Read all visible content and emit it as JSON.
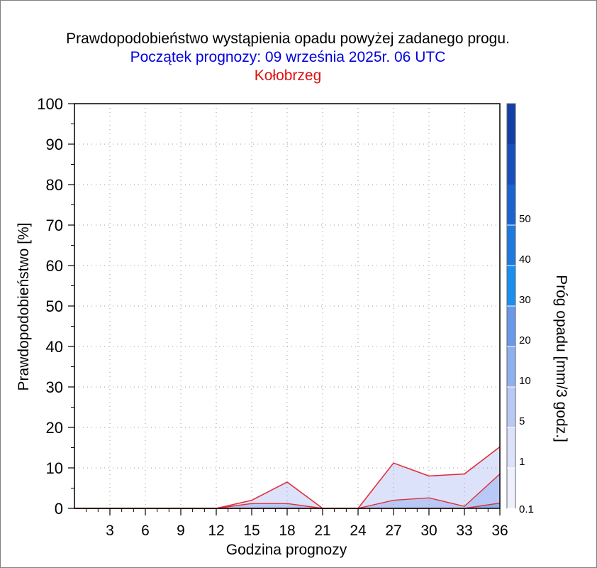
{
  "chart_data": {
    "type": "area",
    "title": "Prawdopodobieństwo wystąpienia opadu powyżej zadanego progu.",
    "subtitle": "Początek prognozy: 09 września 2025r. 06 UTC",
    "location": "Kołobrzeg",
    "xlabel": "Godzina prognozy",
    "ylabel": "Prawdopodobieństwo [%]",
    "colorbar_label": "Próg opadu [mm/3 godz.]",
    "xlim": [
      0,
      36
    ],
    "ylim": [
      0,
      100
    ],
    "x_ticks": [
      "3",
      "6",
      "9",
      "12",
      "15",
      "18",
      "21",
      "24",
      "27",
      "30",
      "33",
      "36"
    ],
    "y_ticks": [
      "0",
      "10",
      "20",
      "30",
      "40",
      "50",
      "60",
      "70",
      "80",
      "90",
      "100"
    ],
    "grid": true,
    "x": [
      0,
      3,
      6,
      9,
      12,
      15,
      18,
      21,
      24,
      27,
      30,
      33,
      36
    ],
    "series": [
      {
        "name": "0.1",
        "color": "#dce2fa",
        "values": [
          0,
          0,
          0,
          0,
          0,
          2,
          6.5,
          0,
          0,
          11.2,
          8,
          8.5,
          15.2
        ]
      },
      {
        "name": "1",
        "color": "#b9c9f6",
        "values": [
          0,
          0,
          0,
          0,
          0,
          1.2,
          1.2,
          0,
          0,
          2,
          2.6,
          0.5,
          8.5
        ]
      },
      {
        "name": "5",
        "color": "#8fb0f0",
        "values": [
          0,
          0,
          0,
          0,
          0,
          0,
          0,
          0,
          0,
          0,
          0,
          0,
          1.3
        ]
      }
    ],
    "line_color": "#e0303a",
    "colorbar": {
      "tick_labels": [
        "0.1",
        "1",
        "5",
        "10",
        "20",
        "30",
        "40",
        "50"
      ],
      "colors": [
        "#eef1fd",
        "#dce2fa",
        "#b9c9f6",
        "#8fb0f0",
        "#6a98ea",
        "#1a8ff0",
        "#1f7ae0",
        "#1a64cf",
        "#1750bd",
        "#1240a8"
      ]
    },
    "colors": {
      "title": "#000000",
      "subtitle": "#0000dd",
      "location": "#e01010"
    }
  }
}
